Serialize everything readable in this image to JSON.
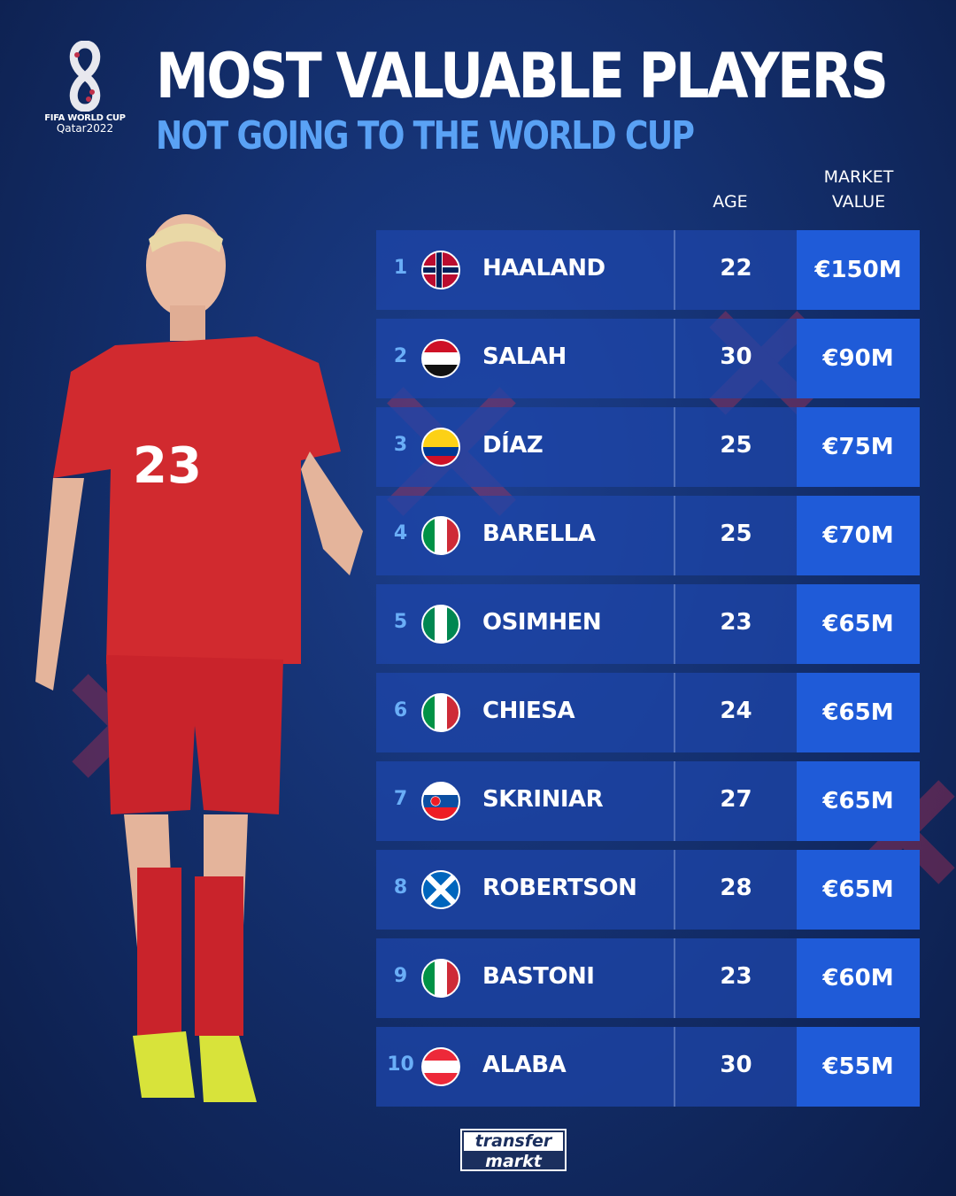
{
  "logo": {
    "line1": "FIFA WORLD CUP",
    "line2": "Qatar2022"
  },
  "title": "MOST VALUABLE PLAYERS",
  "subtitle": "NOT GOING TO THE WORLD CUP",
  "headers": {
    "age": "AGE",
    "market_value_1": "MARKET",
    "market_value_2": "VALUE"
  },
  "colors": {
    "background": "#14306f",
    "row": "#1e46aa",
    "value_cell": "#1f5bd8",
    "subtitle": "#5aa2f5",
    "rank": "#6aaef7"
  },
  "rows": [
    {
      "rank": "1",
      "country": "Norway",
      "name": "HAALAND",
      "age": "22",
      "value": "€150M"
    },
    {
      "rank": "2",
      "country": "Egypt",
      "name": "SALAH",
      "age": "30",
      "value": "€90M"
    },
    {
      "rank": "3",
      "country": "Colombia",
      "name": "DÍAZ",
      "age": "25",
      "value": "€75M"
    },
    {
      "rank": "4",
      "country": "Italy",
      "name": "BARELLA",
      "age": "25",
      "value": "€70M"
    },
    {
      "rank": "5",
      "country": "Nigeria",
      "name": "OSIMHEN",
      "age": "23",
      "value": "€65M"
    },
    {
      "rank": "6",
      "country": "Italy",
      "name": "CHIESA",
      "age": "24",
      "value": "€65M"
    },
    {
      "rank": "7",
      "country": "Slovakia",
      "name": "SKRINIAR",
      "age": "27",
      "value": "€65M"
    },
    {
      "rank": "8",
      "country": "Scotland",
      "name": "ROBERTSON",
      "age": "28",
      "value": "€65M"
    },
    {
      "rank": "9",
      "country": "Italy",
      "name": "BASTONI",
      "age": "23",
      "value": "€60M"
    },
    {
      "rank": "10",
      "country": "Austria",
      "name": "ALABA",
      "age": "30",
      "value": "€55M"
    }
  ],
  "player_shirt_number": "23",
  "brand": {
    "line1": "transfer",
    "line2": "markt"
  }
}
